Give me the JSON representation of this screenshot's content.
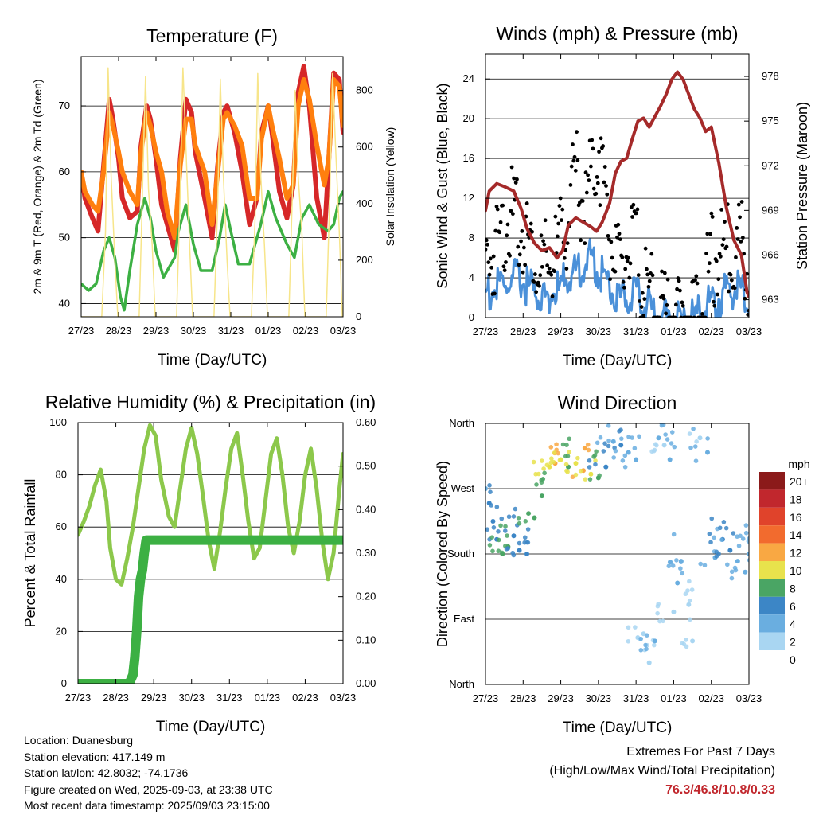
{
  "x_ticks": [
    "27/23",
    "28/23",
    "29/23",
    "30/23",
    "31/23",
    "01/23",
    "02/23",
    "03/23"
  ],
  "footer": {
    "location": "Location: Duanesburg",
    "elevation": "Station elevation: 417.149 m",
    "latlon": "Station lat/lon: 42.8032; -74.1736",
    "created": "Figure created on Wed, 2025-09-03, at 23:38 UTC",
    "recent": "Most recent data timestamp: 2025/09/03 23:15:00"
  },
  "extremes": {
    "title": "Extremes For Past 7 Days",
    "subtitle": "(High/Low/Max Wind/Total Precipitation)",
    "values": "76.3/46.8/10.8/0.33",
    "color": "#c1272d"
  },
  "chart_data": [
    {
      "id": "temperature",
      "type": "line",
      "title": "Temperature (F)",
      "xlabel": "Time (Day/UTC)",
      "ylabel": "2m & 9m T (Red, Orange) & 2m Td (Green)",
      "y2label": "Solar Insolation (Yellow)",
      "x_unit": "days since 27/23",
      "xlim": [
        0,
        7
      ],
      "ylim": [
        38,
        77.5
      ],
      "y_ticks": [
        40,
        50,
        60,
        70
      ],
      "y2lim": [
        0,
        920
      ],
      "y2_ticks": [
        0,
        200,
        400,
        600,
        800
      ],
      "grid": true,
      "series": [
        {
          "name": "2m T",
          "color": "#d62728",
          "axis": "y1",
          "x": [
            0,
            0.1,
            0.3,
            0.45,
            0.6,
            0.75,
            0.85,
            1.0,
            1.1,
            1.3,
            1.5,
            1.6,
            1.75,
            1.85,
            2.0,
            2.15,
            2.3,
            2.5,
            2.65,
            2.8,
            2.95,
            3.05,
            3.3,
            3.5,
            3.65,
            3.8,
            3.9,
            4.1,
            4.3,
            4.5,
            4.7,
            4.82,
            5.0,
            5.1,
            5.3,
            5.5,
            5.67,
            5.8,
            5.95,
            6.1,
            6.3,
            6.5,
            6.62,
            6.75,
            6.9,
            7.0
          ],
          "y": [
            60,
            56,
            53,
            51,
            61,
            71,
            68,
            62,
            56,
            53,
            54,
            64,
            70,
            68,
            62,
            55,
            52,
            48,
            62,
            71,
            69,
            63,
            56,
            50,
            61,
            69,
            70,
            66,
            60,
            52,
            56,
            66,
            70,
            66,
            57,
            53,
            58,
            72,
            76,
            70,
            56,
            50,
            62,
            75,
            74,
            66
          ]
        },
        {
          "name": "9m T",
          "color": "#ff7f0e",
          "axis": "y1",
          "x": [
            0,
            0.1,
            0.3,
            0.45,
            0.6,
            0.75,
            0.85,
            1.0,
            1.1,
            1.3,
            1.5,
            1.6,
            1.75,
            1.85,
            2.0,
            2.15,
            2.3,
            2.5,
            2.65,
            2.8,
            2.95,
            3.05,
            3.3,
            3.5,
            3.65,
            3.8,
            3.9,
            4.1,
            4.3,
            4.5,
            4.7,
            4.82,
            5.0,
            5.1,
            5.3,
            5.5,
            5.67,
            5.8,
            5.95,
            6.1,
            6.3,
            6.5,
            6.62,
            6.75,
            6.9,
            7.0
          ],
          "y": [
            60,
            57,
            55,
            54,
            60,
            69,
            67,
            63,
            60,
            57,
            55,
            63,
            69,
            67,
            63,
            60,
            54,
            50,
            61,
            68,
            68,
            64,
            60,
            52,
            60,
            68,
            69,
            67,
            64,
            56,
            56,
            65,
            70,
            67,
            62,
            56,
            58,
            70,
            74,
            71,
            64,
            58,
            62,
            74,
            73,
            67
          ]
        },
        {
          "name": "2m Td",
          "color": "#3cb043",
          "axis": "y1",
          "x": [
            0,
            0.2,
            0.4,
            0.6,
            0.75,
            0.9,
            1.05,
            1.15,
            1.3,
            1.5,
            1.7,
            1.85,
            2.0,
            2.2,
            2.5,
            2.6,
            2.8,
            3.0,
            3.2,
            3.5,
            3.7,
            3.85,
            4.0,
            4.2,
            4.5,
            4.8,
            5.0,
            5.2,
            5.5,
            5.7,
            5.9,
            6.1,
            6.35,
            6.6,
            6.75,
            6.9,
            7.0
          ],
          "y": [
            43,
            42,
            43,
            48,
            50,
            47,
            41,
            39,
            45,
            52,
            56,
            53,
            48,
            44,
            47,
            51,
            55,
            49,
            45,
            45,
            50,
            55,
            51,
            46,
            46,
            52,
            57,
            53,
            49,
            47,
            53,
            55,
            52,
            51,
            52,
            56,
            57
          ]
        },
        {
          "name": "Solar Insolation",
          "color": "#f7e58a",
          "axis": "y2",
          "x": [
            0,
            0.55,
            0.65,
            0.72,
            0.8,
            0.9,
            0.98,
            1.55,
            1.65,
            1.72,
            1.8,
            1.9,
            1.98,
            2.55,
            2.65,
            2.72,
            2.8,
            2.9,
            2.98,
            3.55,
            3.65,
            3.72,
            3.8,
            3.9,
            3.98,
            4.55,
            4.65,
            4.72,
            4.8,
            4.9,
            4.98,
            5.55,
            5.65,
            5.72,
            5.8,
            5.9,
            5.98,
            6.55,
            6.65,
            6.72,
            6.8,
            6.9,
            6.98
          ],
          "y": [
            0,
            0,
            300,
            880,
            500,
            200,
            0,
            0,
            500,
            850,
            450,
            250,
            0,
            0,
            450,
            880,
            600,
            250,
            0,
            0,
            400,
            840,
            500,
            200,
            0,
            0,
            350,
            860,
            500,
            250,
            0,
            0,
            450,
            800,
            500,
            300,
            0,
            0,
            450,
            860,
            600,
            300,
            0
          ]
        }
      ]
    },
    {
      "id": "winds",
      "type": "scatter",
      "title": "Winds (mph) & Pressure (mb)",
      "xlabel": "Time (Day/UTC)",
      "ylabel": "Sonic Wind & Gust (Blue, Black)",
      "y2label": "Station Pressure (Maroon)",
      "x_unit": "days since 27/23",
      "xlim": [
        0,
        7
      ],
      "ylim": [
        0,
        26.5
      ],
      "y_ticks": [
        0,
        4,
        8,
        12,
        16,
        20,
        24
      ],
      "y2lim": [
        961.8,
        979.5
      ],
      "y2_ticks": [
        963,
        966,
        969,
        972,
        975,
        978
      ],
      "grid": true,
      "series": [
        {
          "name": "Sonic Wind",
          "color": "#4a90d9",
          "axis": "y1",
          "x": [
            0,
            0.3,
            0.6,
            0.9,
            1.2,
            1.5,
            1.8,
            2.0,
            2.2,
            2.4,
            2.6,
            2.8,
            3.0,
            3.2,
            3.4,
            3.6,
            3.8,
            4.0,
            4.2,
            4.4,
            4.6,
            4.8,
            5.0,
            5.2,
            5.4,
            5.6,
            5.8,
            6.0,
            6.2,
            6.4,
            6.6,
            6.8,
            7.0
          ],
          "y": [
            3.5,
            4,
            4.5,
            5,
            4,
            3,
            3.5,
            4,
            5.5,
            5.5,
            6.5,
            7,
            6,
            5,
            3.5,
            3,
            3.5,
            3,
            2.5,
            2,
            1.5,
            1,
            1,
            0.8,
            0.5,
            1,
            1.5,
            2.5,
            3,
            3.5,
            4,
            3.5,
            2
          ]
        },
        {
          "name": "Gust",
          "color": "#000000",
          "axis": "y1",
          "x": [
            0,
            0.3,
            0.6,
            0.9,
            1.2,
            1.5,
            1.8,
            2.0,
            2.2,
            2.4,
            2.6,
            2.8,
            3.0,
            3.2,
            3.4,
            3.6,
            3.8,
            4.0,
            4.2,
            4.4,
            4.6,
            4.8,
            5.0,
            5.2,
            5.4,
            5.6,
            5.8,
            6.0,
            6.2,
            6.4,
            6.6,
            6.8,
            7.0
          ],
          "y": [
            8,
            10,
            13,
            12,
            10,
            7,
            8,
            10,
            13,
            17,
            14,
            16,
            20,
            14,
            9,
            6,
            10,
            9,
            6,
            4,
            3,
            2.5,
            2,
            2,
            1.5,
            2,
            4,
            8,
            9,
            9,
            10,
            10,
            7
          ]
        },
        {
          "name": "Station Pressure",
          "color": "#a52a2a",
          "axis": "y2",
          "x": [
            0,
            0.1,
            0.3,
            0.5,
            0.75,
            0.95,
            1.1,
            1.3,
            1.5,
            1.7,
            1.9,
            2.05,
            2.2,
            2.4,
            2.6,
            2.8,
            2.95,
            3.1,
            3.3,
            3.45,
            3.6,
            3.75,
            3.9,
            4.05,
            4.2,
            4.35,
            4.5,
            4.65,
            4.8,
            4.95,
            5.1,
            5.25,
            5.4,
            5.55,
            5.7,
            5.85,
            6.0,
            6.2,
            6.4,
            6.6,
            6.8,
            6.95,
            7.0
          ],
          "y": [
            969,
            970.3,
            970.8,
            970.6,
            970.3,
            969.1,
            967.8,
            966.8,
            966.3,
            966.5,
            965.8,
            966.3,
            968.0,
            968.5,
            968.2,
            967.9,
            967.6,
            968.2,
            969.5,
            971.5,
            972.3,
            972.5,
            973.8,
            975.0,
            975.2,
            974.6,
            975.3,
            976.0,
            976.8,
            977.8,
            978.3,
            977.8,
            976.8,
            975.8,
            975.2,
            974.3,
            974.6,
            972.2,
            969.2,
            967.0,
            966.0,
            963.5,
            963.2
          ]
        }
      ]
    },
    {
      "id": "humidity",
      "type": "line",
      "title": "Relative Humidity (%) & Precipitation (in)",
      "xlabel": "Time (Day/UTC)",
      "ylabel": "Percent & Total Rainfall",
      "x_unit": "days since 27/23",
      "xlim": [
        0,
        7
      ],
      "ylim": [
        0,
        100
      ],
      "y_ticks": [
        0,
        20,
        40,
        60,
        80,
        100
      ],
      "y2lim": [
        0,
        0.6
      ],
      "y2_ticks": [
        "0.00",
        "0.10",
        "0.20",
        "0.30",
        "0.40",
        "0.50",
        "0.60"
      ],
      "grid": true,
      "series": [
        {
          "name": "Relative Humidity",
          "color": "#8cc84b",
          "axis": "y1",
          "x": [
            0,
            0.15,
            0.3,
            0.45,
            0.6,
            0.75,
            0.85,
            1.0,
            1.15,
            1.3,
            1.45,
            1.6,
            1.75,
            1.9,
            2.05,
            2.2,
            2.4,
            2.55,
            2.7,
            2.85,
            3.0,
            3.15,
            3.3,
            3.45,
            3.6,
            3.75,
            3.9,
            4.05,
            4.2,
            4.35,
            4.5,
            4.65,
            4.8,
            4.95,
            5.1,
            5.25,
            5.4,
            5.55,
            5.7,
            5.85,
            6.0,
            6.15,
            6.3,
            6.45,
            6.6,
            6.75,
            6.9,
            7.0
          ],
          "y": [
            57,
            62,
            68,
            76,
            82,
            70,
            52,
            40,
            38,
            48,
            60,
            75,
            90,
            99,
            95,
            78,
            64,
            60,
            75,
            90,
            98,
            88,
            72,
            55,
            44,
            58,
            75,
            90,
            96,
            80,
            62,
            48,
            52,
            70,
            88,
            94,
            80,
            60,
            50,
            62,
            80,
            90,
            75,
            55,
            40,
            50,
            74,
            88
          ]
        },
        {
          "name": "Total Rainfall",
          "color": "#3cb043",
          "axis": "y2",
          "x": [
            0,
            1.35,
            1.45,
            1.5,
            1.55,
            1.6,
            1.65,
            1.7,
            1.75,
            1.8,
            7.0
          ],
          "y": [
            0,
            0,
            0.02,
            0.06,
            0.12,
            0.2,
            0.24,
            0.26,
            0.3,
            0.33,
            0.33
          ]
        }
      ]
    },
    {
      "id": "wind_direction",
      "type": "scatter",
      "title": "Wind Direction",
      "xlabel": "Time (Day/UTC)",
      "ylabel": "Direction (Colored By Speed)",
      "x_unit": "days since 27/23",
      "xlim": [
        0,
        7
      ],
      "y_ticks": [
        "North",
        "East",
        "South",
        "West",
        "North"
      ],
      "ylim": [
        0,
        360
      ],
      "grid": true,
      "legend": {
        "title": "mph",
        "placement": "right",
        "labels": [
          "20+",
          "18",
          "16",
          "14",
          "12",
          "10",
          "8",
          "6",
          "4",
          "2",
          "0"
        ],
        "colors": [
          "#8b1a1a",
          "#c1272d",
          "#e0432b",
          "#f26b2e",
          "#f9a843",
          "#e8e24c",
          "#4aa564",
          "#3c86c6",
          "#6aaee0",
          "#a9d6f2"
        ]
      },
      "series": [
        {
          "name": "direction",
          "x": [
            0,
            0.1,
            0.2,
            0.3,
            0.45,
            0.6,
            0.75,
            0.9,
            1.1,
            1.3,
            1.5,
            1.7,
            1.85,
            2.0,
            2.2,
            2.4,
            2.6,
            2.8,
            3.0,
            3.2,
            3.4,
            3.6,
            3.8,
            4.0,
            4.2,
            4.35,
            4.5,
            4.6,
            4.75,
            4.9,
            5.0,
            5.1,
            5.2,
            5.4,
            5.5,
            5.7,
            5.9,
            6.1,
            6.3,
            6.5,
            6.7,
            6.9,
            7.0
          ],
          "y": [
            270,
            250,
            225,
            200,
            180,
            190,
            205,
            185,
            180,
            230,
            260,
            300,
            305,
            310,
            300,
            305,
            295,
            290,
            285,
            300,
            335,
            330,
            320,
            310,
            70,
            30,
            60,
            340,
            330,
            310,
            100,
            140,
            170,
            110,
            60,
            340,
            320,
            175,
            200,
            185,
            170,
            155,
            180
          ],
          "speed": [
            3,
            4,
            5,
            5,
            6,
            6,
            5,
            4,
            5,
            6,
            6,
            8,
            10,
            8,
            6,
            9,
            10,
            8,
            6,
            4,
            3,
            4,
            2,
            2,
            1,
            1,
            2,
            3,
            1,
            2,
            1,
            2,
            2,
            1,
            1,
            1,
            2,
            3,
            4,
            4,
            3,
            2,
            3
          ]
        }
      ]
    }
  ]
}
